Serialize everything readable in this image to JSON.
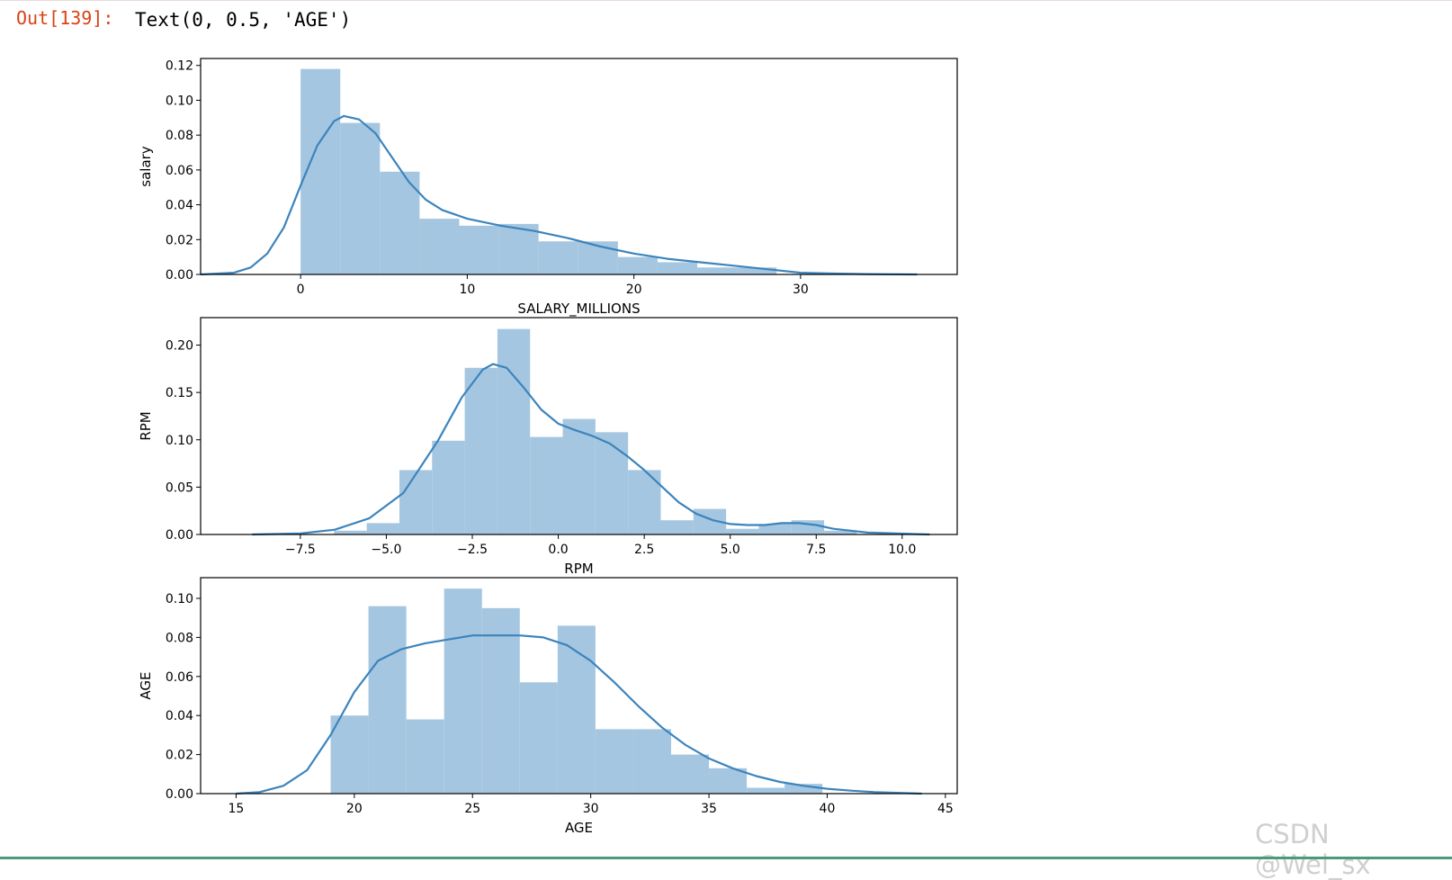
{
  "output": {
    "prompt": "Out[139]:",
    "text": "Text(0, 0.5, 'AGE')"
  },
  "watermark": "CSDN @Wei_sx",
  "colors": {
    "bar": "#a5c6e0",
    "kde": "#3c84bc",
    "prompt": "#d84315"
  },
  "chart_data": [
    {
      "type": "bar",
      "subtype": "histogram_with_kde",
      "xlabel": "SALARY_MILLIONS",
      "ylabel": "salary",
      "xlim": [
        -6.0,
        39.4
      ],
      "ylim": [
        0,
        0.124
      ],
      "xticks": [
        0,
        10,
        20,
        30
      ],
      "xtick_labels": [
        "0",
        "10",
        "20",
        "30"
      ],
      "yticks": [
        0,
        0.02,
        0.04,
        0.06,
        0.08,
        0.1,
        0.12
      ],
      "ytick_labels": [
        "0.00",
        "0.02",
        "0.04",
        "0.06",
        "0.08",
        "0.10",
        "0.12"
      ],
      "bin_edges": [
        0,
        2.38,
        4.76,
        7.14,
        9.52,
        11.9,
        14.28,
        16.66,
        19.04,
        21.42,
        23.8,
        26.18,
        28.56
      ],
      "values": [
        0.118,
        0.087,
        0.059,
        0.032,
        0.028,
        0.029,
        0.019,
        0.019,
        0.01,
        0.007,
        0.004,
        0.004
      ],
      "kde": {
        "x": [
          -6,
          -4,
          -3,
          -2,
          -1,
          0,
          1,
          2,
          2.6,
          3.5,
          4.5,
          5.5,
          6.5,
          7.5,
          8.5,
          10,
          12,
          14,
          16,
          18,
          20,
          22,
          24,
          26,
          28,
          30,
          32,
          34,
          37
        ],
        "y": [
          0,
          0.001,
          0.004,
          0.012,
          0.027,
          0.051,
          0.074,
          0.088,
          0.091,
          0.089,
          0.081,
          0.067,
          0.053,
          0.043,
          0.037,
          0.032,
          0.028,
          0.025,
          0.021,
          0.016,
          0.012,
          0.009,
          0.007,
          0.005,
          0.003,
          0.001,
          0.0005,
          0.0002,
          0
        ]
      }
    },
    {
      "type": "bar",
      "subtype": "histogram_with_kde",
      "xlabel": "RPM",
      "ylabel": "RPM",
      "xlim": [
        -10.4,
        11.6
      ],
      "ylim": [
        0,
        0.229
      ],
      "xticks": [
        -7.5,
        -5.0,
        -2.5,
        0.0,
        2.5,
        5.0,
        7.5,
        10.0
      ],
      "xtick_labels": [
        "−7.5",
        "−5.0",
        "−2.5",
        "0.0",
        "2.5",
        "5.0",
        "7.5",
        "10.0"
      ],
      "yticks": [
        0,
        0.05,
        0.1,
        0.15,
        0.2
      ],
      "ytick_labels": [
        "0.00",
        "0.05",
        "0.10",
        "0.15",
        "0.20"
      ],
      "bin_edges": [
        -6.52,
        -5.57,
        -4.62,
        -3.67,
        -2.72,
        -1.77,
        -0.82,
        0.13,
        1.08,
        2.03,
        2.98,
        3.93,
        4.88,
        5.83,
        6.78,
        7.73,
        8.68
      ],
      "values": [
        0.004,
        0.012,
        0.068,
        0.099,
        0.176,
        0.217,
        0.103,
        0.122,
        0.108,
        0.068,
        0.015,
        0.027,
        0.006,
        0.011,
        0.015,
        0.004
      ],
      "kde": {
        "x": [
          -8.9,
          -7.5,
          -6.5,
          -5.5,
          -4.5,
          -3.5,
          -2.8,
          -2.2,
          -1.9,
          -1.5,
          -1.0,
          -0.5,
          0.0,
          0.5,
          1.0,
          1.5,
          2.0,
          2.5,
          3.0,
          3.5,
          4.0,
          4.5,
          5.0,
          5.5,
          6.0,
          6.5,
          7.0,
          7.5,
          8.0,
          9.0,
          10.8
        ],
        "y": [
          0,
          0.001,
          0.005,
          0.017,
          0.044,
          0.099,
          0.145,
          0.174,
          0.18,
          0.176,
          0.155,
          0.132,
          0.117,
          0.11,
          0.104,
          0.096,
          0.083,
          0.068,
          0.051,
          0.034,
          0.022,
          0.015,
          0.011,
          0.01,
          0.01,
          0.012,
          0.012,
          0.01,
          0.006,
          0.002,
          0
        ]
      }
    },
    {
      "type": "bar",
      "subtype": "histogram_with_kde",
      "xlabel": "AGE",
      "ylabel": "AGE",
      "xlim": [
        13.5,
        45.5
      ],
      "ylim": [
        0,
        0.1106
      ],
      "xticks": [
        15,
        20,
        25,
        30,
        35,
        40,
        45
      ],
      "xtick_labels": [
        "15",
        "20",
        "25",
        "30",
        "35",
        "40",
        "45"
      ],
      "yticks": [
        0,
        0.02,
        0.04,
        0.06,
        0.08,
        0.1
      ],
      "ytick_labels": [
        "0.00",
        "0.02",
        "0.04",
        "0.06",
        "0.08",
        "0.10"
      ],
      "bin_edges": [
        19,
        20.6,
        22.2,
        23.8,
        25.4,
        27,
        28.6,
        30.2,
        31.8,
        33.4,
        35,
        36.6,
        38.2,
        39.8
      ],
      "values": [
        0.04,
        0.096,
        0.038,
        0.105,
        0.095,
        0.057,
        0.086,
        0.033,
        0.033,
        0.02,
        0.013,
        0.003,
        0.005
      ],
      "kde": {
        "x": [
          15,
          16,
          17,
          18,
          19,
          20,
          21,
          22,
          23,
          24,
          25,
          26,
          27,
          28,
          29,
          30,
          31,
          32,
          33,
          34,
          35,
          36,
          37,
          38,
          39,
          40,
          41,
          42,
          44
        ],
        "y": [
          0,
          0.0008,
          0.004,
          0.012,
          0.03,
          0.052,
          0.068,
          0.074,
          0.077,
          0.079,
          0.081,
          0.081,
          0.081,
          0.08,
          0.076,
          0.068,
          0.057,
          0.045,
          0.034,
          0.025,
          0.018,
          0.013,
          0.009,
          0.006,
          0.004,
          0.0025,
          0.0015,
          0.0008,
          0
        ]
      }
    }
  ]
}
